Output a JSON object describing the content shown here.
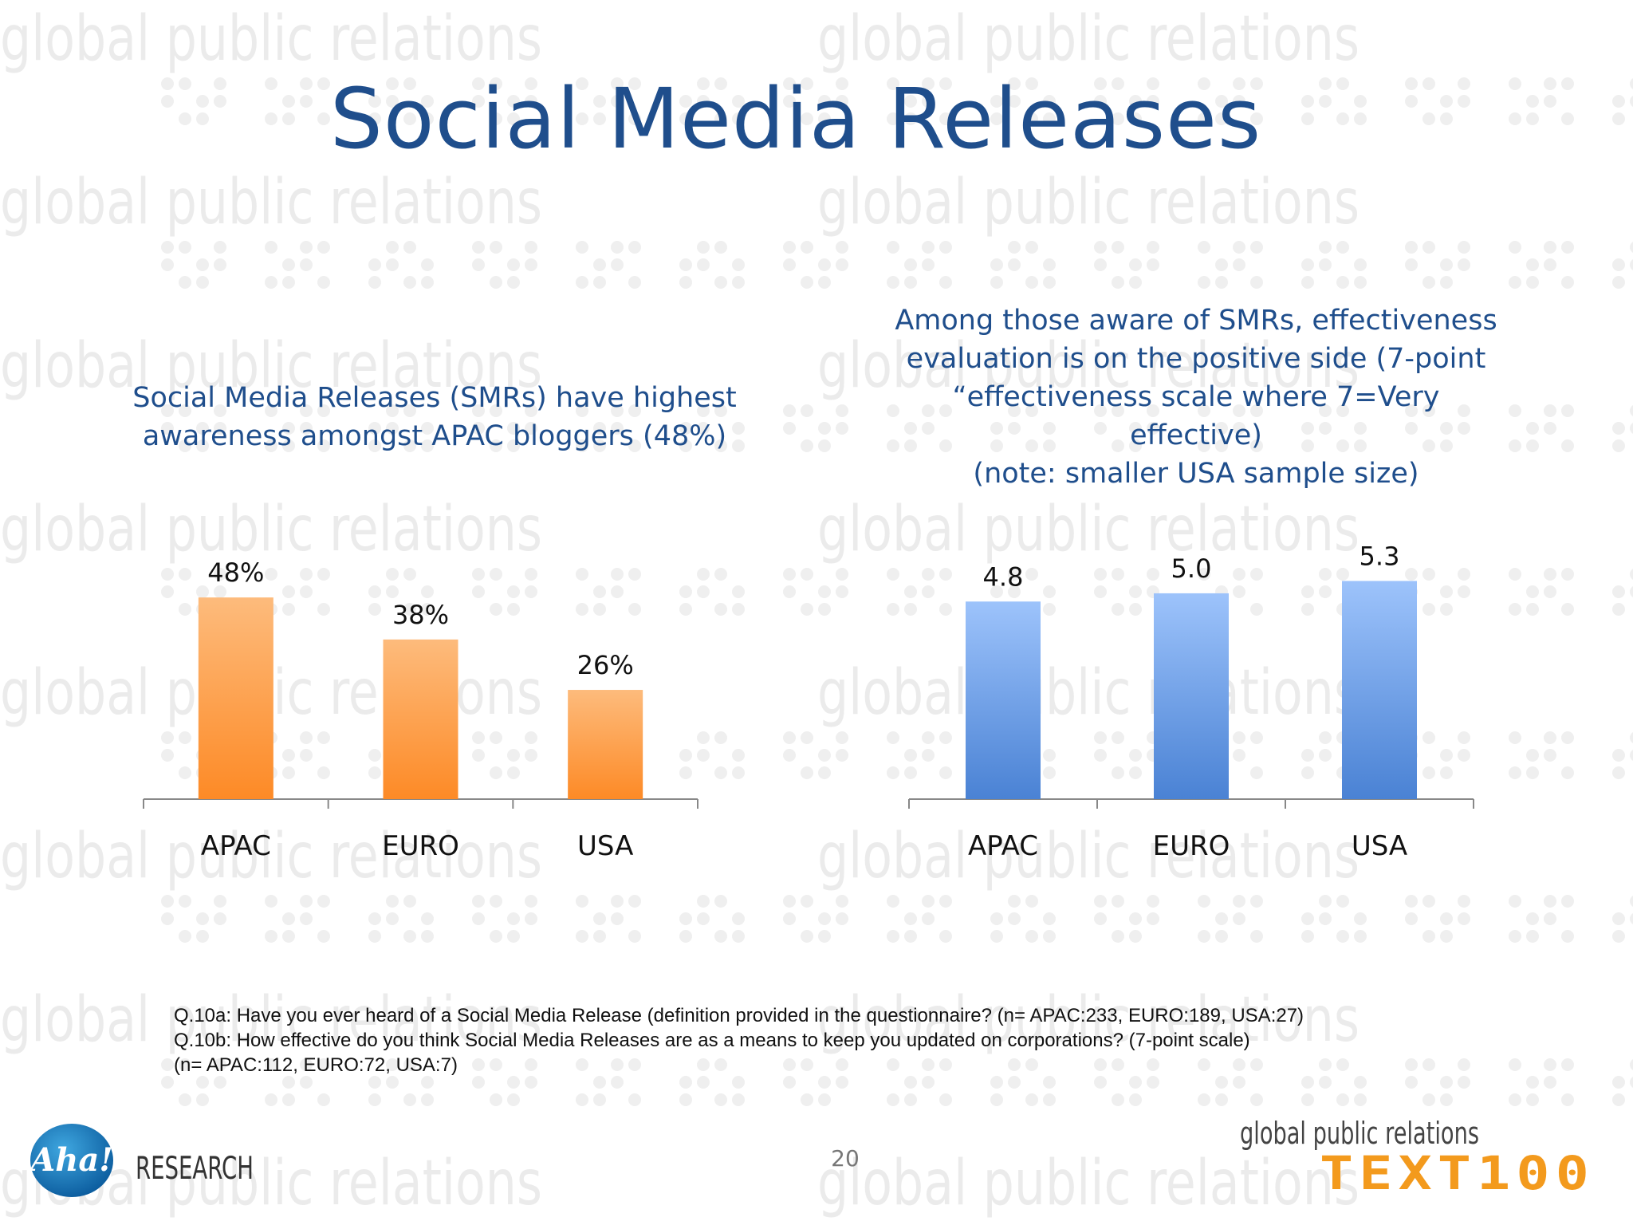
{
  "title": "Social Media Releases",
  "watermark_text": "global public relations",
  "left_panel": {
    "subtitle": "Social Media Releases (SMRs) have highest\nawareness amongst APAC bloggers (48%)"
  },
  "right_panel": {
    "subtitle": "Among those aware of SMRs, effectiveness\nevaluation is on the positive side (7-point\n“effectiveness scale where 7=Very effective)\n(note: smaller USA sample size)"
  },
  "chart_data": [
    {
      "type": "bar",
      "title": "",
      "categories": [
        "APAC",
        "EURO",
        "USA"
      ],
      "values": [
        48,
        38,
        26
      ],
      "data_labels": [
        "48%",
        "38%",
        "26%"
      ],
      "unit": "%",
      "ylim": [
        0,
        56
      ],
      "grid": false,
      "legend": "none",
      "color": "#fd9b45"
    },
    {
      "type": "bar",
      "title": "",
      "categories": [
        "APAC",
        "EURO",
        "USA"
      ],
      "values": [
        4.8,
        5.0,
        5.3
      ],
      "data_labels": [
        "4.8",
        "5.0",
        "5.3"
      ],
      "ylim": [
        0,
        6.2
      ],
      "grid": false,
      "legend": "none",
      "color": "#6ea2ec"
    }
  ],
  "footnotes": [
    "Q.10a: Have you ever heard of a Social Media Release (definition provided in the questionnaire? (n= APAC:233, EURO:189, USA:27)",
    "Q.10b: How effective do you think Social Media Releases are as a means to keep you updated on corporations?  (7-point scale)",
    "(n= APAC:112, EURO:72, USA:7)"
  ],
  "page_number": "20",
  "logos": {
    "left_brand": "Aha!",
    "left_word": "RESEARCH",
    "right_tagline": "global public relations",
    "right_brand": "TEXT100"
  },
  "colors": {
    "title": "#1f4e8c",
    "bar_orange": "#fd9b45",
    "bar_blue": "#6ea2ec",
    "text100_orange": "#f39a1d"
  }
}
